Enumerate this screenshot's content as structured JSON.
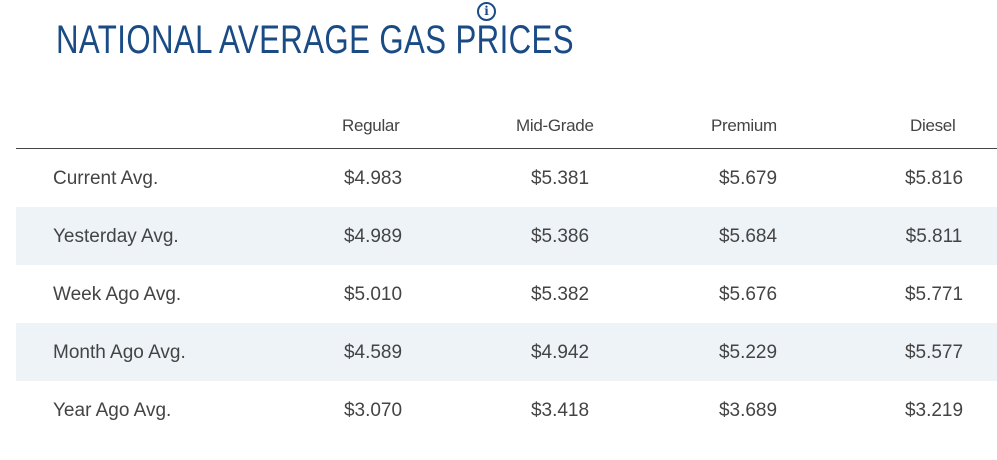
{
  "header": {
    "title": "NATIONAL AVERAGE GAS PRICES",
    "info_icon_glyph": "i",
    "info_icon": "info-circle-icon",
    "accent_color": "#1a4b84"
  },
  "table": {
    "columns": [
      "",
      "Regular",
      "Mid-Grade",
      "Premium",
      "Diesel"
    ],
    "rows": [
      {
        "label": "Current Avg.",
        "values": [
          "$4.983",
          "$5.381",
          "$5.679",
          "$5.816"
        ]
      },
      {
        "label": "Yesterday Avg.",
        "values": [
          "$4.989",
          "$5.386",
          "$5.684",
          "$5.811"
        ]
      },
      {
        "label": "Week Ago Avg.",
        "values": [
          "$5.010",
          "$5.382",
          "$5.676",
          "$5.771"
        ]
      },
      {
        "label": "Month Ago Avg.",
        "values": [
          "$4.589",
          "$4.942",
          "$5.229",
          "$5.577"
        ]
      },
      {
        "label": "Year Ago Avg.",
        "values": [
          "$3.070",
          "$3.418",
          "$3.689",
          "$3.219"
        ]
      }
    ],
    "stripe_color": "#eef3f8"
  }
}
